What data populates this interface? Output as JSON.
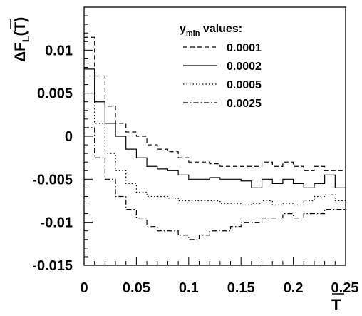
{
  "chart_data": {
    "type": "line",
    "title": "",
    "xlabel": "T",
    "ylabel": "ΔF",
    "ylabel_sub": "L",
    "ylabel_arg": "T",
    "xlim": [
      0,
      0.25
    ],
    "ylim": [
      -0.015,
      0.015
    ],
    "x_ticks": [
      0,
      0.05,
      0.1,
      0.15,
      0.2,
      0.25
    ],
    "x_tick_labels": [
      "0",
      "0.05",
      "0.1",
      "0.15",
      "0.2",
      "0.25"
    ],
    "y_ticks": [
      -0.015,
      -0.01,
      -0.005,
      0,
      0.005,
      0.01
    ],
    "y_tick_labels": [
      "-0.015",
      "-0.01",
      "-0.005",
      "0",
      "0.005",
      "0.01"
    ],
    "grid": false,
    "legend": {
      "title_main": "y",
      "title_sub": "min",
      "title_rest": " values:",
      "placement": "top-right"
    },
    "bin_width": 0.01,
    "series": [
      {
        "name": "0.0001",
        "dash": "dashed",
        "x": [
          0.005,
          0.015,
          0.025,
          0.035,
          0.045,
          0.055,
          0.065,
          0.075,
          0.085,
          0.095,
          0.105,
          0.115,
          0.125,
          0.135,
          0.145,
          0.155,
          0.165,
          0.175,
          0.185,
          0.195,
          0.205,
          0.215,
          0.225,
          0.235,
          0.245
        ],
        "values": [
          0.0115,
          0.007,
          0.0035,
          0.0015,
          0.0005,
          0.0,
          -0.001,
          -0.0015,
          -0.0018,
          -0.0025,
          -0.003,
          -0.003,
          -0.0032,
          -0.0035,
          -0.0035,
          -0.0035,
          -0.0035,
          -0.003,
          -0.0035,
          -0.003,
          -0.0035,
          -0.004,
          -0.0035,
          -0.004,
          -0.004
        ]
      },
      {
        "name": "0.0002",
        "dash": "solid",
        "x": [
          0.005,
          0.015,
          0.025,
          0.035,
          0.045,
          0.055,
          0.065,
          0.075,
          0.085,
          0.095,
          0.105,
          0.115,
          0.125,
          0.135,
          0.145,
          0.155,
          0.165,
          0.175,
          0.185,
          0.195,
          0.205,
          0.215,
          0.225,
          0.235,
          0.245
        ],
        "values": [
          0.0078,
          0.004,
          0.0015,
          0.0,
          -0.0015,
          -0.0025,
          -0.0035,
          -0.0038,
          -0.004,
          -0.0045,
          -0.005,
          -0.005,
          -0.0048,
          -0.005,
          -0.005,
          -0.0052,
          -0.006,
          -0.005,
          -0.0055,
          -0.005,
          -0.0055,
          -0.006,
          -0.0055,
          -0.0045,
          -0.006
        ]
      },
      {
        "name": "0.0005",
        "dash": "dotted",
        "x": [
          0.005,
          0.015,
          0.025,
          0.035,
          0.045,
          0.055,
          0.065,
          0.075,
          0.085,
          0.095,
          0.105,
          0.115,
          0.125,
          0.135,
          0.145,
          0.155,
          0.165,
          0.175,
          0.185,
          0.195,
          0.205,
          0.215,
          0.225,
          0.235,
          0.245
        ],
        "values": [
          0.005,
          0.0015,
          -0.002,
          -0.004,
          -0.0055,
          -0.0065,
          -0.007,
          -0.007,
          -0.0072,
          -0.0075,
          -0.0075,
          -0.0075,
          -0.0075,
          -0.0078,
          -0.0078,
          -0.008,
          -0.0078,
          -0.0075,
          -0.008,
          -0.0078,
          -0.008,
          -0.0075,
          -0.007,
          -0.0068,
          -0.0075
        ]
      },
      {
        "name": "0.0025",
        "dash": "dashdot",
        "x": [
          0.005,
          0.015,
          0.025,
          0.035,
          0.045,
          0.055,
          0.065,
          0.075,
          0.085,
          0.095,
          0.105,
          0.115,
          0.125,
          0.135,
          0.145,
          0.155,
          0.165,
          0.175,
          0.185,
          0.195,
          0.205,
          0.215,
          0.225,
          0.235,
          0.245
        ],
        "values": [
          0.001,
          -0.0025,
          -0.005,
          -0.007,
          -0.0085,
          -0.0095,
          -0.0105,
          -0.011,
          -0.011,
          -0.0115,
          -0.012,
          -0.0115,
          -0.011,
          -0.011,
          -0.0105,
          -0.01,
          -0.01,
          -0.0095,
          -0.0095,
          -0.009,
          -0.0095,
          -0.009,
          -0.009,
          -0.0085,
          -0.0085
        ]
      }
    ]
  }
}
